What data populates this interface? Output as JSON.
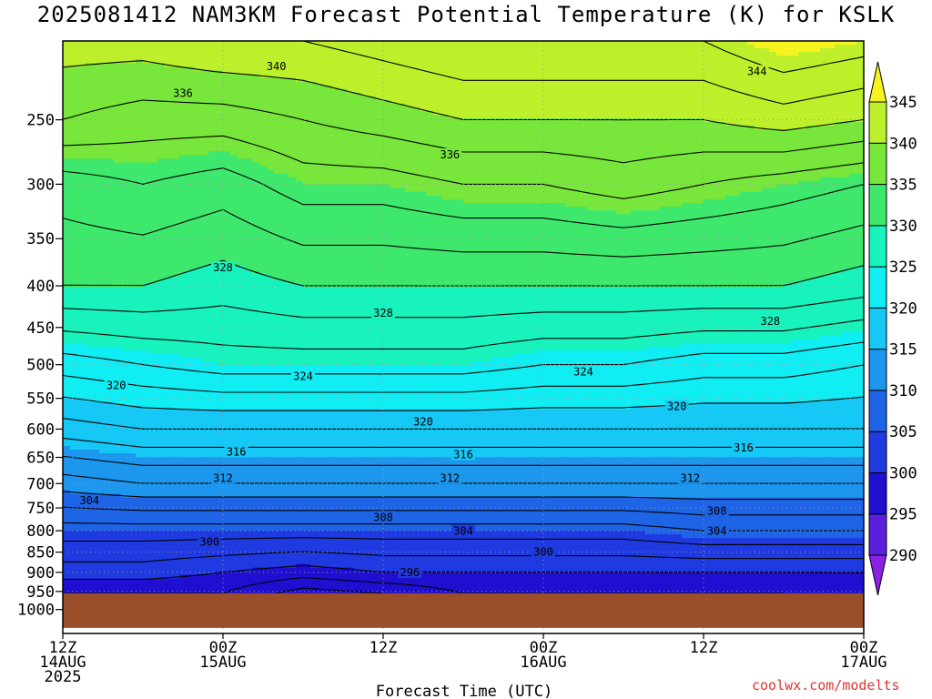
{
  "title": "2025081412 NAM3KM Forecast Potential Temperature (K) for KSLK",
  "footer": "coolwx.com/modelts",
  "colors": {
    "ground": "#9b4e2a",
    "contour": "#000000",
    "footer": "#e0342c"
  },
  "chart_data": {
    "type": "heatmap",
    "title": "2025081412 NAM3KM Forecast Potential Temperature (K) for KSLK",
    "xlabel": "Forecast Time (UTC)",
    "ylabel": "",
    "x_ticks": [
      {
        "hours": 0,
        "lines": [
          "12Z",
          "14AUG",
          "2025"
        ]
      },
      {
        "hours": 12,
        "lines": [
          "00Z",
          "15AUG"
        ]
      },
      {
        "hours": 24,
        "lines": [
          "12Z"
        ]
      },
      {
        "hours": 36,
        "lines": [
          "00Z",
          "16AUG"
        ]
      },
      {
        "hours": 48,
        "lines": [
          "12Z"
        ]
      },
      {
        "hours": 60,
        "lines": [
          "00Z",
          "17AUG"
        ]
      }
    ],
    "xlim_hours": [
      0,
      60
    ],
    "y_ticks_hPa": [
      250,
      300,
      350,
      400,
      450,
      500,
      550,
      600,
      650,
      700,
      750,
      800,
      850,
      900,
      950,
      1000
    ],
    "y_scale": "log-pressure",
    "surface_pressure_hPa": 955,
    "colorbar": {
      "ticks": [
        290,
        295,
        300,
        305,
        310,
        315,
        320,
        325,
        330,
        335,
        340,
        345
      ],
      "bands": [
        {
          "min": 285,
          "max": 290,
          "color": "#8a1fe6"
        },
        {
          "min": 290,
          "max": 295,
          "color": "#5a1fdc"
        },
        {
          "min": 295,
          "max": 300,
          "color": "#1f0fd0"
        },
        {
          "min": 300,
          "max": 305,
          "color": "#1f3ae0"
        },
        {
          "min": 305,
          "max": 310,
          "color": "#1e64e6"
        },
        {
          "min": 310,
          "max": 315,
          "color": "#1d96ee"
        },
        {
          "min": 315,
          "max": 320,
          "color": "#16c8f5"
        },
        {
          "min": 320,
          "max": 325,
          "color": "#10eef4"
        },
        {
          "min": 325,
          "max": 330,
          "color": "#18f2bd"
        },
        {
          "min": 330,
          "max": 335,
          "color": "#3ee86c"
        },
        {
          "min": 335,
          "max": 340,
          "color": "#78e63a"
        },
        {
          "min": 340,
          "max": 345,
          "color": "#bdf02a"
        },
        {
          "min": 345,
          "max": 350,
          "color": "#f6f31e"
        }
      ]
    },
    "profiles": [
      {
        "hours": 0,
        "theta_K": [
          {
            "p": 955,
            "t": 298
          },
          {
            "p": 900,
            "t": 301
          },
          {
            "p": 800,
            "t": 305
          },
          {
            "p": 700,
            "t": 311
          },
          {
            "p": 600,
            "t": 317
          },
          {
            "p": 500,
            "t": 323
          },
          {
            "p": 400,
            "t": 330
          },
          {
            "p": 300,
            "t": 333
          },
          {
            "p": 250,
            "t": 338
          },
          {
            "p": 200,
            "t": 341
          }
        ]
      },
      {
        "hours": 6,
        "theta_K": [
          {
            "p": 955,
            "t": 298
          },
          {
            "p": 900,
            "t": 301
          },
          {
            "p": 800,
            "t": 305
          },
          {
            "p": 700,
            "t": 312
          },
          {
            "p": 600,
            "t": 318
          },
          {
            "p": 500,
            "t": 324
          },
          {
            "p": 400,
            "t": 330
          },
          {
            "p": 300,
            "t": 334
          },
          {
            "p": 250,
            "t": 337
          },
          {
            "p": 200,
            "t": 341
          }
        ]
      },
      {
        "hours": 12,
        "theta_K": [
          {
            "p": 955,
            "t": 298
          },
          {
            "p": 900,
            "t": 300
          },
          {
            "p": 800,
            "t": 305
          },
          {
            "p": 700,
            "t": 312
          },
          {
            "p": 600,
            "t": 318
          },
          {
            "p": 500,
            "t": 325
          },
          {
            "p": 400,
            "t": 329
          },
          {
            "p": 300,
            "t": 333
          },
          {
            "p": 250,
            "t": 337
          },
          {
            "p": 200,
            "t": 342
          }
        ]
      },
      {
        "hours": 18,
        "theta_K": [
          {
            "p": 955,
            "t": 295
          },
          {
            "p": 900,
            "t": 299
          },
          {
            "p": 800,
            "t": 305
          },
          {
            "p": 700,
            "t": 312
          },
          {
            "p": 600,
            "t": 318
          },
          {
            "p": 500,
            "t": 325
          },
          {
            "p": 400,
            "t": 330
          },
          {
            "p": 300,
            "t": 335
          },
          {
            "p": 250,
            "t": 338
          },
          {
            "p": 200,
            "t": 342
          }
        ]
      },
      {
        "hours": 24,
        "theta_K": [
          {
            "p": 955,
            "t": 296
          },
          {
            "p": 900,
            "t": 300
          },
          {
            "p": 800,
            "t": 305
          },
          {
            "p": 700,
            "t": 312
          },
          {
            "p": 600,
            "t": 318
          },
          {
            "p": 500,
            "t": 325
          },
          {
            "p": 400,
            "t": 330
          },
          {
            "p": 300,
            "t": 335
          },
          {
            "p": 250,
            "t": 339
          },
          {
            "p": 200,
            "t": 343
          }
        ]
      },
      {
        "hours": 30,
        "theta_K": [
          {
            "p": 955,
            "t": 298
          },
          {
            "p": 900,
            "t": 300
          },
          {
            "p": 800,
            "t": 305
          },
          {
            "p": 700,
            "t": 312
          },
          {
            "p": 600,
            "t": 318
          },
          {
            "p": 500,
            "t": 325
          },
          {
            "p": 400,
            "t": 330
          },
          {
            "p": 300,
            "t": 336
          },
          {
            "p": 250,
            "t": 340
          },
          {
            "p": 200,
            "t": 344
          }
        ]
      },
      {
        "hours": 36,
        "theta_K": [
          {
            "p": 955,
            "t": 298
          },
          {
            "p": 900,
            "t": 300
          },
          {
            "p": 800,
            "t": 305
          },
          {
            "p": 700,
            "t": 312
          },
          {
            "p": 600,
            "t": 318
          },
          {
            "p": 500,
            "t": 324
          },
          {
            "p": 400,
            "t": 330
          },
          {
            "p": 300,
            "t": 336
          },
          {
            "p": 250,
            "t": 340
          },
          {
            "p": 200,
            "t": 344
          }
        ]
      },
      {
        "hours": 42,
        "theta_K": [
          {
            "p": 955,
            "t": 298
          },
          {
            "p": 900,
            "t": 300
          },
          {
            "p": 800,
            "t": 305
          },
          {
            "p": 700,
            "t": 312
          },
          {
            "p": 600,
            "t": 318
          },
          {
            "p": 500,
            "t": 324
          },
          {
            "p": 400,
            "t": 330
          },
          {
            "p": 300,
            "t": 337
          },
          {
            "p": 250,
            "t": 340
          },
          {
            "p": 200,
            "t": 344
          }
        ]
      },
      {
        "hours": 48,
        "theta_K": [
          {
            "p": 955,
            "t": 298
          },
          {
            "p": 900,
            "t": 300
          },
          {
            "p": 800,
            "t": 306
          },
          {
            "p": 700,
            "t": 312
          },
          {
            "p": 600,
            "t": 318
          },
          {
            "p": 500,
            "t": 323
          },
          {
            "p": 400,
            "t": 330
          },
          {
            "p": 300,
            "t": 336
          },
          {
            "p": 250,
            "t": 340
          },
          {
            "p": 200,
            "t": 344
          }
        ]
      },
      {
        "hours": 54,
        "theta_K": [
          {
            "p": 955,
            "t": 298
          },
          {
            "p": 900,
            "t": 300
          },
          {
            "p": 800,
            "t": 306
          },
          {
            "p": 700,
            "t": 312
          },
          {
            "p": 600,
            "t": 318
          },
          {
            "p": 500,
            "t": 323
          },
          {
            "p": 400,
            "t": 330
          },
          {
            "p": 300,
            "t": 335
          },
          {
            "p": 250,
            "t": 341
          },
          {
            "p": 200,
            "t": 346
          }
        ]
      },
      {
        "hours": 60,
        "theta_K": [
          {
            "p": 955,
            "t": 299
          },
          {
            "p": 900,
            "t": 300
          },
          {
            "p": 800,
            "t": 306
          },
          {
            "p": 700,
            "t": 312
          },
          {
            "p": 600,
            "t": 318
          },
          {
            "p": 500,
            "t": 322
          },
          {
            "p": 400,
            "t": 329
          },
          {
            "p": 300,
            "t": 334
          },
          {
            "p": 250,
            "t": 340
          },
          {
            "p": 200,
            "t": 345
          }
        ]
      }
    ],
    "contour_labels": [
      {
        "text": "340",
        "hours": 16,
        "hPa": 215
      },
      {
        "text": "344",
        "hours": 52,
        "hPa": 218
      },
      {
        "text": "336",
        "hours": 9,
        "hPa": 232
      },
      {
        "text": "336",
        "hours": 29,
        "hPa": 276
      },
      {
        "text": "328",
        "hours": 12,
        "hPa": 380
      },
      {
        "text": "328",
        "hours": 24,
        "hPa": 432
      },
      {
        "text": "328",
        "hours": 53,
        "hPa": 442
      },
      {
        "text": "324",
        "hours": 18,
        "hPa": 517
      },
      {
        "text": "324",
        "hours": 39,
        "hPa": 510
      },
      {
        "text": "320",
        "hours": 4,
        "hPa": 530
      },
      {
        "text": "320",
        "hours": 27,
        "hPa": 588
      },
      {
        "text": "320",
        "hours": 46,
        "hPa": 563
      },
      {
        "text": "316",
        "hours": 13,
        "hPa": 640
      },
      {
        "text": "316",
        "hours": 30,
        "hPa": 645
      },
      {
        "text": "316",
        "hours": 51,
        "hPa": 633
      },
      {
        "text": "312",
        "hours": 12,
        "hPa": 690
      },
      {
        "text": "312",
        "hours": 29,
        "hPa": 690
      },
      {
        "text": "312",
        "hours": 47,
        "hPa": 690
      },
      {
        "text": "308",
        "hours": 24,
        "hPa": 770
      },
      {
        "text": "308",
        "hours": 49,
        "hPa": 757
      },
      {
        "text": "304",
        "hours": 2,
        "hPa": 735
      },
      {
        "text": "304",
        "hours": 30,
        "hPa": 801
      },
      {
        "text": "304",
        "hours": 49,
        "hPa": 801
      },
      {
        "text": "300",
        "hours": 11,
        "hPa": 826
      },
      {
        "text": "300",
        "hours": 36,
        "hPa": 850
      },
      {
        "text": "296",
        "hours": 26,
        "hPa": 900
      }
    ]
  }
}
